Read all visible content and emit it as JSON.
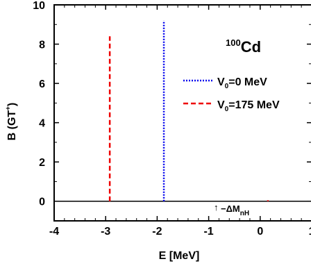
{
  "chart_data": {
    "type": "bar",
    "title": {
      "mass_number": "100",
      "element": "Cd"
    },
    "xlabel": "E [MeV]",
    "ylabel": {
      "base": "B (GT",
      "sup": "+",
      "end": ")"
    },
    "xlim": [
      -4,
      1
    ],
    "ylim": [
      -1,
      10
    ],
    "x_major_ticks": [
      -4,
      -3,
      -2,
      -1,
      0,
      1
    ],
    "y_major_ticks": [
      0,
      2,
      4,
      6,
      8,
      10
    ],
    "x_tick_labels": [
      "-4",
      "-3",
      "-2",
      "-1",
      "0",
      "1"
    ],
    "y_tick_labels": [
      "0",
      "2",
      "4",
      "6",
      "8",
      "10"
    ],
    "zero_line": true,
    "grid": false,
    "legend_position": "right",
    "series": [
      {
        "name": {
          "pre": "V",
          "sub": "0",
          "post": "=0 MeV"
        },
        "style": "dotted",
        "color": "#0000ee",
        "points": [
          {
            "x": -1.87,
            "y": 9.2
          }
        ]
      },
      {
        "name": {
          "pre": "V",
          "sub": "0",
          "post": "=175 MeV"
        },
        "style": "dashed",
        "color": "#ee0000",
        "points": [
          {
            "x": -2.92,
            "y": 8.4
          },
          {
            "x": 0.15,
            "y": 0.05
          }
        ]
      }
    ],
    "annotation": {
      "arrow": "↑",
      "text": "−ΔM",
      "sub": "nH",
      "x": -0.8
    }
  }
}
